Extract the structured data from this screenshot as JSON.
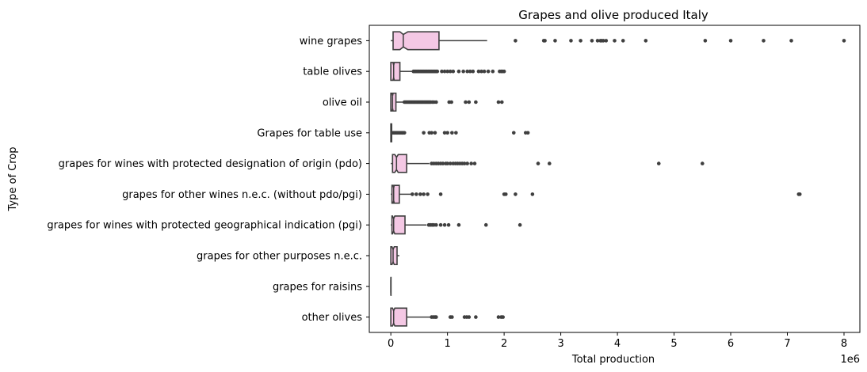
{
  "chart_data": {
    "type": "boxplot",
    "orientation": "horizontal",
    "notched": true,
    "title": "Grapes and olive produced Italy",
    "xlabel": "Total production",
    "ylabel": "Type of Crop",
    "x_offset_label": "1e6",
    "x_unit_multiplier": 1000000,
    "xlim": [
      -0.38,
      8.28
    ],
    "xticks": [
      0,
      1,
      2,
      3,
      4,
      5,
      6,
      7,
      8
    ],
    "xtick_labels": [
      "0",
      "1",
      "2",
      "3",
      "4",
      "5",
      "6",
      "7",
      "8"
    ],
    "colors": {
      "box_fill": "#f4c8e4",
      "box_edge": "#3f3f3f",
      "outlier": "#3f3f3f",
      "axes": "#000000"
    },
    "categories": [
      "wine grapes",
      "table olives",
      "olive oil",
      "Grapes for table use",
      "grapes for wines with protected designation of origin (pdo)",
      "grapes for other wines n.e.c. (without pdo/pgi)",
      "grapes for wines with protected geographical indication (pgi)",
      "grapes for other purposes n.e.c.",
      "grapes for raisins",
      "other olives"
    ],
    "boxes": [
      {
        "label": "wine grapes",
        "whislo": 0.0,
        "q1": 0.04,
        "med": 0.22,
        "q3": 0.85,
        "whishi": 1.7,
        "notch_lo": 0.16,
        "notch_hi": 0.3,
        "fliers": [
          2.2,
          2.7,
          2.72,
          2.9,
          3.18,
          3.35,
          3.55,
          3.65,
          3.7,
          3.72,
          3.75,
          3.8,
          3.95,
          4.1,
          4.5,
          5.55,
          6.0,
          6.58,
          7.07,
          8.0
        ]
      },
      {
        "label": "table olives",
        "whislo": 0.0,
        "q1": 0.0,
        "med": 0.05,
        "q3": 0.16,
        "whishi": 0.38,
        "notch_lo": 0.04,
        "notch_hi": 0.06,
        "fliers": [
          0.4,
          0.42,
          0.44,
          0.46,
          0.48,
          0.5,
          0.52,
          0.54,
          0.56,
          0.58,
          0.6,
          0.62,
          0.64,
          0.66,
          0.68,
          0.7,
          0.72,
          0.74,
          0.76,
          0.78,
          0.8,
          0.82,
          0.9,
          0.95,
          1.0,
          1.05,
          1.1,
          1.2,
          1.28,
          1.35,
          1.4,
          1.45,
          1.55,
          1.6,
          1.65,
          1.72,
          1.8,
          1.92,
          1.95,
          1.97,
          2.0
        ]
      },
      {
        "label": "olive oil",
        "whislo": 0.0,
        "q1": 0.0,
        "med": 0.03,
        "q3": 0.09,
        "whishi": 0.22,
        "notch_lo": 0.02,
        "notch_hi": 0.04,
        "fliers": [
          0.24,
          0.26,
          0.28,
          0.3,
          0.32,
          0.34,
          0.36,
          0.38,
          0.4,
          0.42,
          0.44,
          0.46,
          0.48,
          0.5,
          0.52,
          0.54,
          0.56,
          0.58,
          0.6,
          0.62,
          0.64,
          0.66,
          0.68,
          0.7,
          0.73,
          0.76,
          0.8,
          1.03,
          1.07,
          1.32,
          1.38,
          1.5,
          1.9,
          1.96
        ]
      },
      {
        "label": "Grapes for table use",
        "whislo": 0.0,
        "q1": 0.0,
        "med": 0.005,
        "q3": 0.015,
        "whishi": 0.03,
        "notch_lo": 0.004,
        "notch_hi": 0.006,
        "fliers": [
          0.04,
          0.06,
          0.08,
          0.1,
          0.12,
          0.14,
          0.16,
          0.18,
          0.2,
          0.22,
          0.24,
          0.58,
          0.68,
          0.72,
          0.78,
          0.95,
          1.0,
          1.08,
          1.15,
          2.17,
          2.38,
          2.42
        ]
      },
      {
        "label": "grapes for wines with protected designation of origin (pdo)",
        "whislo": 0.0,
        "q1": 0.03,
        "med": 0.1,
        "q3": 0.28,
        "whishi": 0.68,
        "notch_lo": 0.07,
        "notch_hi": 0.13,
        "fliers": [
          0.72,
          0.76,
          0.8,
          0.84,
          0.88,
          0.92,
          0.97,
          1.0,
          1.05,
          1.1,
          1.14,
          1.18,
          1.22,
          1.26,
          1.3,
          1.35,
          1.42,
          1.48,
          2.6,
          2.8,
          4.73,
          5.5
        ]
      },
      {
        "label": "grapes for other wines n.e.c. (without pdo/pgi)",
        "whislo": 0.0,
        "q1": 0.02,
        "med": 0.05,
        "q3": 0.15,
        "whishi": 0.35,
        "notch_lo": 0.04,
        "notch_hi": 0.06,
        "fliers": [
          0.38,
          0.45,
          0.52,
          0.58,
          0.65,
          0.88,
          2.0,
          2.03,
          2.2,
          2.5,
          7.2,
          7.22
        ]
      },
      {
        "label": "grapes for wines with protected geographical indication (pgi)",
        "whislo": 0.0,
        "q1": 0.02,
        "med": 0.05,
        "q3": 0.25,
        "whishi": 0.63,
        "notch_lo": 0.03,
        "notch_hi": 0.07,
        "fliers": [
          0.67,
          0.7,
          0.73,
          0.76,
          0.8,
          0.88,
          0.95,
          1.02,
          1.2,
          1.68,
          2.28
        ]
      },
      {
        "label": "grapes for other purposes n.e.c.",
        "whislo": 0.0,
        "q1": 0.0,
        "med": 0.04,
        "q3": 0.11,
        "whishi": 0.15,
        "notch_lo": 0.02,
        "notch_hi": 0.06,
        "fliers": []
      },
      {
        "label": "grapes for raisins",
        "whislo": 0.0,
        "q1": 0.0,
        "med": 0.0,
        "q3": 0.003,
        "whishi": 0.005,
        "notch_lo": 0.0,
        "notch_hi": 0.002,
        "fliers": []
      },
      {
        "label": "other olives",
        "whislo": 0.0,
        "q1": 0.0,
        "med": 0.05,
        "q3": 0.28,
        "whishi": 0.7,
        "notch_lo": 0.03,
        "notch_hi": 0.07,
        "fliers": [
          0.72,
          0.75,
          0.78,
          0.8,
          1.05,
          1.08,
          1.3,
          1.34,
          1.38,
          1.5,
          1.9,
          1.95,
          1.98
        ]
      }
    ]
  }
}
